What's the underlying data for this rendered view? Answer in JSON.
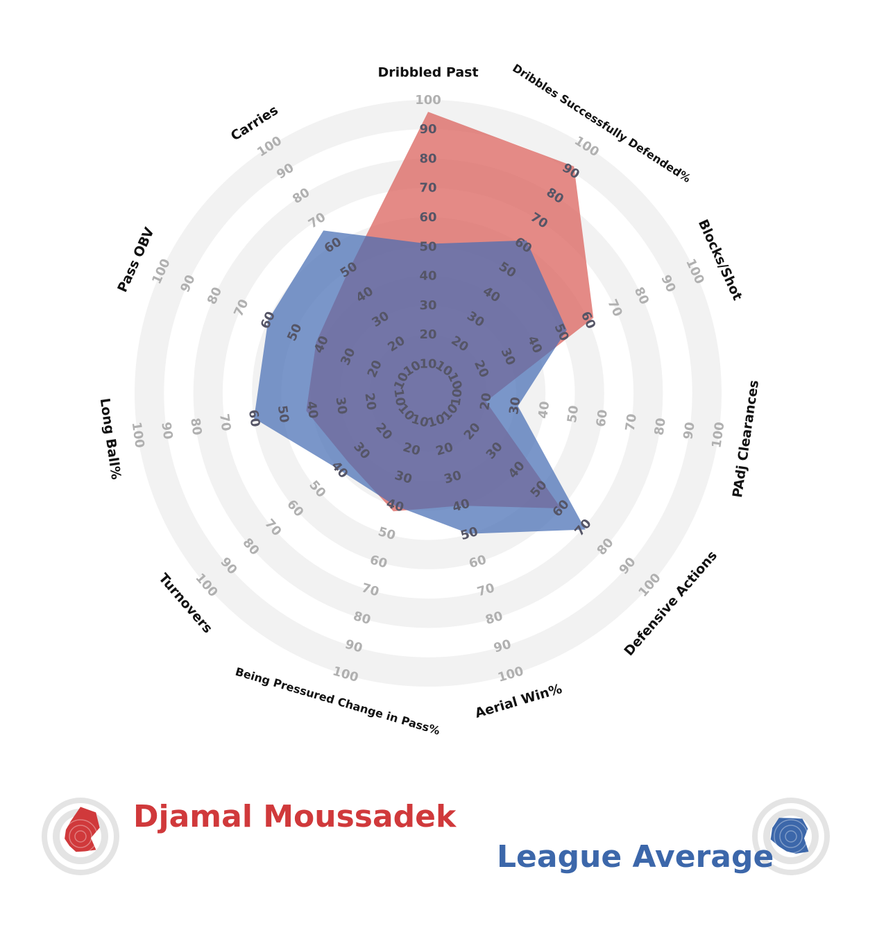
{
  "chart_data": {
    "type": "radar",
    "axes": [
      "Dribbled Past",
      "Dribbles Successfully Defended%",
      "Blocks/Shot",
      "PAdj Clearances",
      "Defensive Actions",
      "Aerial Win%",
      "Being Pressured Change in Pass%",
      "Turnovers",
      "Long Ball%",
      "Pass OBV",
      "Carries"
    ],
    "ticks": [
      10,
      20,
      30,
      40,
      50,
      60,
      70,
      80,
      90,
      100
    ],
    "range": [
      0,
      100
    ],
    "grid": "alternating-rings",
    "legend_position": "bottom",
    "series": [
      {
        "name": "Djamal Moussadek",
        "color": "#d0393b",
        "fill": "rgba(220,105,100,0.78)",
        "values": [
          96,
          92,
          62,
          20,
          60,
          40,
          42,
          36,
          42,
          42,
          50
        ]
      },
      {
        "name": "League Average",
        "color": "#3c67aa",
        "fill": "rgba(70,110,180,0.72)",
        "values": [
          51,
          62,
          52,
          31,
          71,
          50,
          40,
          40,
          60,
          60,
          66
        ]
      }
    ]
  }
}
